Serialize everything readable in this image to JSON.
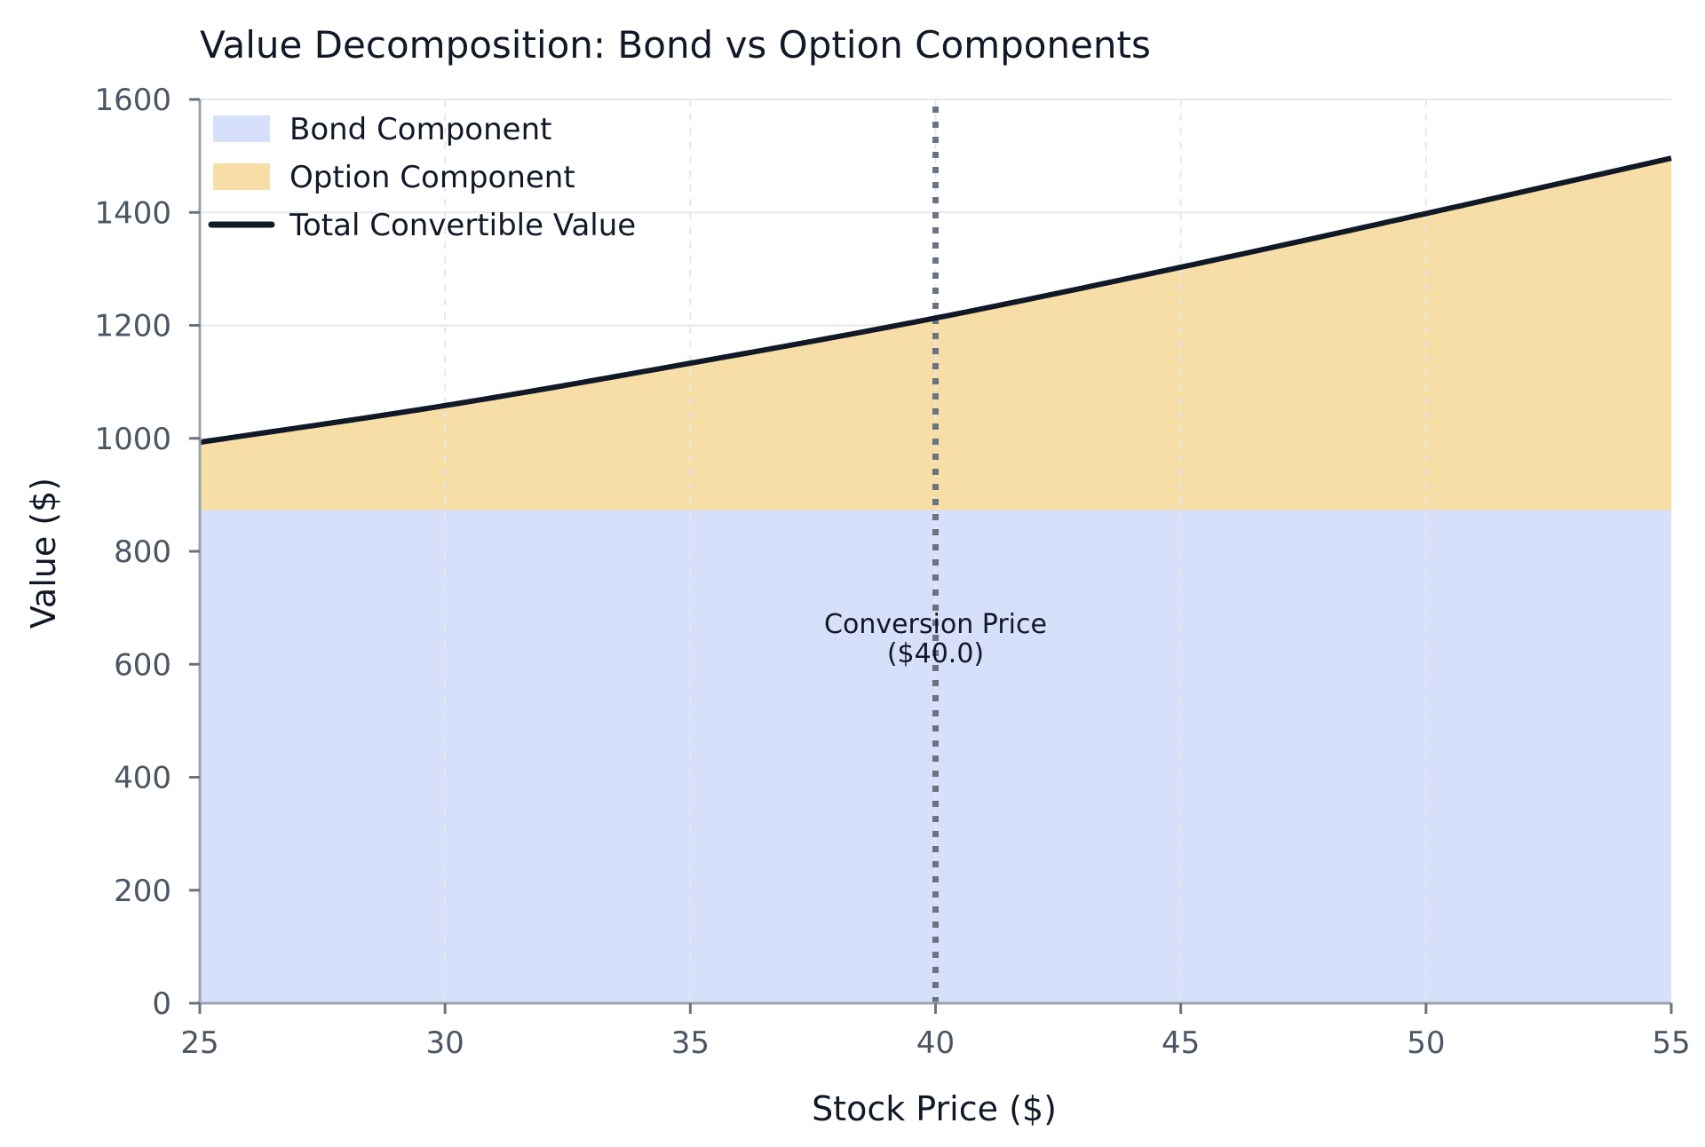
{
  "chart_data": {
    "type": "area",
    "title": "Value Decomposition: Bond vs Option Components",
    "xlabel": "Stock Price ($)",
    "ylabel": "Value ($)",
    "xlim": [
      25,
      55
    ],
    "ylim": [
      0,
      1600
    ],
    "x_ticks": [
      25,
      30,
      35,
      40,
      45,
      50,
      55
    ],
    "y_ticks": [
      0,
      200,
      400,
      600,
      800,
      1000,
      1200,
      1400,
      1600
    ],
    "grid": true,
    "legend_position": "top-left",
    "x": [
      25,
      30,
      35,
      40,
      45,
      50,
      55
    ],
    "series": [
      {
        "name": "Bond Component",
        "kind": "area",
        "color": "#d6e0fb",
        "values": [
          873,
          873,
          873,
          873,
          873,
          873,
          873
        ]
      },
      {
        "name": "Option Component",
        "kind": "area",
        "color": "#f7dea6",
        "values": [
          120,
          185,
          260,
          340,
          430,
          525,
          623
        ]
      },
      {
        "name": "Total Convertible Value",
        "kind": "line",
        "color": "#111827",
        "values": [
          993,
          1058,
          1133,
          1213,
          1303,
          1398,
          1496
        ]
      }
    ],
    "annotations": [
      {
        "x": 40,
        "style": "dotted-vertical-line",
        "color": "#6b7280",
        "label_lines": [
          "Conversion Price",
          "($40.0)"
        ]
      }
    ]
  }
}
